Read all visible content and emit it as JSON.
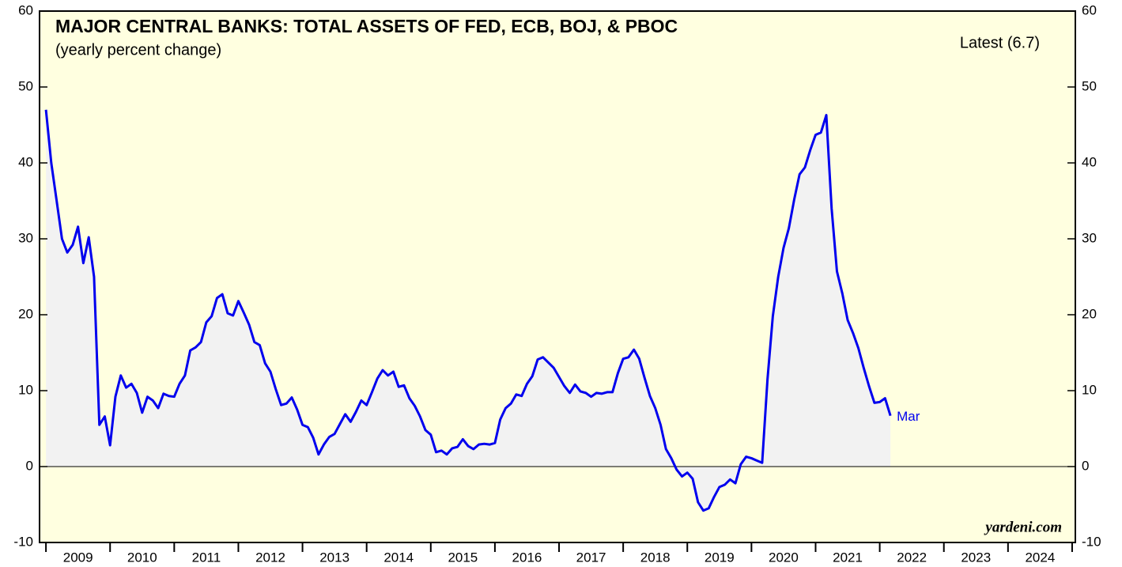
{
  "chart_data": {
    "type": "area-line",
    "title": "MAJOR CENTRAL BANKS: TOTAL ASSETS OF FED, ECB, BOJ, & PBOC",
    "subtitle": "(yearly percent change)",
    "annotations": {
      "latest": "Latest (6.7)",
      "last_label": "Mar",
      "source": "yardeni.com"
    },
    "color": "#0000ee",
    "fill_color": "#f2f2f2",
    "background": "#ffffe0",
    "xlim": [
      2008.9,
      2025.05
    ],
    "xticks": [
      2009,
      2010,
      2011,
      2012,
      2013,
      2014,
      2015,
      2016,
      2017,
      2018,
      2019,
      2020,
      2021,
      2022,
      2023,
      2024,
      2025
    ],
    "ylim": [
      -10,
      60
    ],
    "yticks": [
      -10,
      0,
      10,
      20,
      30,
      40,
      50,
      60
    ],
    "x": [
      2009,
      2009.083,
      2009.167,
      2009.25,
      2009.333,
      2009.417,
      2009.5,
      2009.583,
      2009.667,
      2009.75,
      2009.833,
      2009.917,
      2010,
      2010.083,
      2010.167,
      2010.25,
      2010.333,
      2010.417,
      2010.5,
      2010.583,
      2010.667,
      2010.75,
      2010.833,
      2010.917,
      2011,
      2011.083,
      2011.167,
      2011.25,
      2011.333,
      2011.417,
      2011.5,
      2011.583,
      2011.667,
      2011.75,
      2011.833,
      2011.917,
      2012,
      2012.083,
      2012.167,
      2012.25,
      2012.333,
      2012.417,
      2012.5,
      2012.583,
      2012.667,
      2012.75,
      2012.833,
      2012.917,
      2013,
      2013.083,
      2013.167,
      2013.25,
      2013.333,
      2013.417,
      2013.5,
      2013.583,
      2013.667,
      2013.75,
      2013.833,
      2013.917,
      2014,
      2014.083,
      2014.167,
      2014.25,
      2014.333,
      2014.417,
      2014.5,
      2014.583,
      2014.667,
      2014.75,
      2014.833,
      2014.917,
      2015,
      2015.083,
      2015.167,
      2015.25,
      2015.333,
      2015.417,
      2015.5,
      2015.583,
      2015.667,
      2015.75,
      2015.833,
      2015.917,
      2016,
      2016.083,
      2016.167,
      2016.25,
      2016.333,
      2016.417,
      2016.5,
      2016.583,
      2016.667,
      2016.75,
      2016.833,
      2016.917,
      2017,
      2017.083,
      2017.167,
      2017.25,
      2017.333,
      2017.417,
      2017.5,
      2017.583,
      2017.667,
      2017.75,
      2017.833,
      2017.917,
      2018,
      2018.083,
      2018.167,
      2018.25,
      2018.333,
      2018.417,
      2018.5,
      2018.583,
      2018.667,
      2018.75,
      2018.833,
      2018.917,
      2019,
      2019.083,
      2019.167,
      2019.25,
      2019.333,
      2019.417,
      2019.5,
      2019.583,
      2019.667,
      2019.75,
      2019.833,
      2019.917,
      2020,
      2020.083,
      2020.167,
      2020.25,
      2020.333,
      2020.417,
      2020.5,
      2020.583,
      2020.667,
      2020.75,
      2020.833,
      2020.917,
      2021,
      2021.083,
      2021.167,
      2021.25,
      2021.333,
      2021.417,
      2021.5,
      2021.583,
      2021.667,
      2021.75,
      2021.833,
      2021.917,
      2022,
      2022.083,
      2022.167
    ],
    "series": [
      {
        "name": "Total assets",
        "values": [
          47,
          40,
          35,
          30,
          28.2,
          29.2,
          31.6,
          26.8,
          30.2,
          25,
          5.5,
          6.6,
          2.8,
          9.2,
          12,
          10.4,
          10.9,
          9.7,
          7.1,
          9.2,
          8.7,
          7.7,
          9.6,
          9.3,
          9.2,
          10.9,
          12,
          15.3,
          15.7,
          16.4,
          19,
          19.8,
          22.2,
          22.7,
          20.2,
          19.9,
          21.8,
          20.3,
          18.7,
          16.4,
          16,
          13.6,
          12.5,
          10.2,
          8.1,
          8.3,
          9.1,
          7.5,
          5.5,
          5.2,
          3.8,
          1.6,
          2.9,
          3.9,
          4.3,
          5.6,
          6.9,
          5.9,
          7.2,
          8.7,
          8.1,
          9.8,
          11.6,
          12.7,
          12,
          12.5,
          10.5,
          10.7,
          9,
          8,
          6.6,
          4.8,
          4.2,
          1.9,
          2.1,
          1.6,
          2.4,
          2.6,
          3.6,
          2.7,
          2.3,
          2.9,
          3,
          2.9,
          3.1,
          6.2,
          7.7,
          8.3,
          9.5,
          9.3,
          10.9,
          11.9,
          14.1,
          14.4,
          13.7,
          13,
          11.8,
          10.6,
          9.7,
          10.8,
          9.9,
          9.7,
          9.2,
          9.7,
          9.6,
          9.8,
          9.8,
          12.3,
          14.2,
          14.4,
          15.4,
          14.2,
          11.7,
          9.3,
          7.7,
          5.5,
          2.3,
          1.1,
          -0.4,
          -1.3,
          -0.8,
          -1.6,
          -4.7,
          -5.8,
          -5.5,
          -4,
          -2.7,
          -2.4,
          -1.7,
          -2.2,
          0.3,
          1.3,
          1.1,
          0.8,
          0.5,
          11.5,
          19.8,
          25,
          28.8,
          31.4,
          35.2,
          38.5,
          39.4,
          41.7,
          43.7,
          44,
          46.3,
          34,
          25.7,
          22.8,
          19.3,
          17.6,
          15.6,
          13,
          10.6,
          8.4,
          8.5,
          9,
          6.7
        ]
      }
    ]
  }
}
